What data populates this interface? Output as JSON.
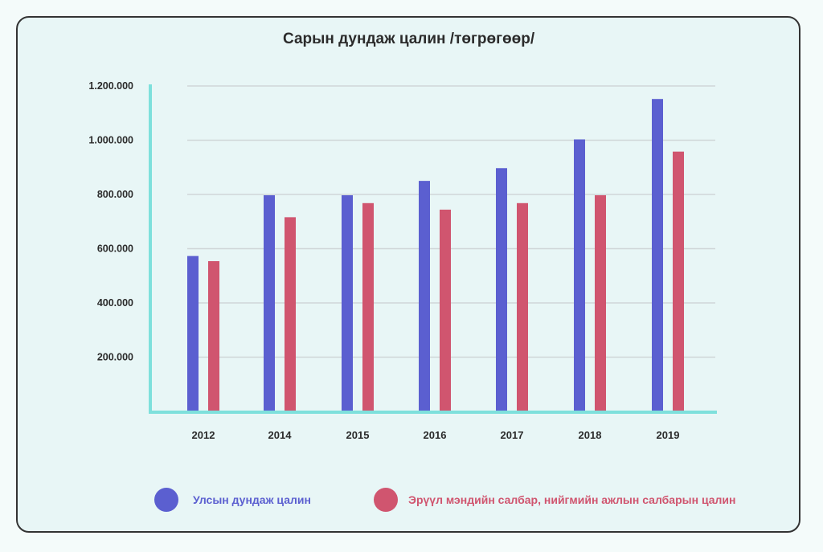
{
  "chart_data": {
    "type": "bar",
    "title": "Сарын дундаж цалин /төгрөгөөр/",
    "xlabel": "",
    "ylabel": "",
    "categories": [
      "2012",
      "2014",
      "2015",
      "2016",
      "2017",
      "2018",
      "2019"
    ],
    "y_ticks": [
      "200.000",
      "400.000",
      "600.000",
      "800.000",
      "1.000.000",
      "1.200.000"
    ],
    "ylim": [
      0,
      1200000
    ],
    "grid": true,
    "legend_position": "bottom",
    "series": [
      {
        "name": "Улсын дундаж цалин",
        "color": "#5b5fd0",
        "values": [
          573000,
          797000,
          797000,
          850000,
          897000,
          1003000,
          1152000
        ]
      },
      {
        "name": "Эрүүл мэндийн салбар, нийгмийн ажлын салбарын цалин",
        "color": "#d0556f",
        "values": [
          554000,
          716000,
          768000,
          744000,
          768000,
          797000,
          958000
        ]
      }
    ],
    "axis_color": "#7ee0dc",
    "grid_color": "#cfd6d8"
  }
}
